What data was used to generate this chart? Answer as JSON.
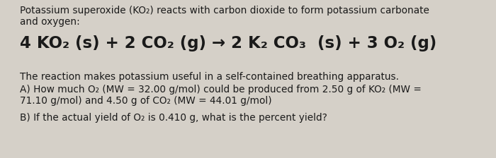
{
  "bg_color": "#d5d0c8",
  "text_color": "#1a1a1a",
  "line1": "Potassium superoxide (KO₂) reacts with carbon dioxide to form potassium carbonate",
  "line2": "and oxygen:",
  "equation": "4 KO₂ (s) + 2 CO₂ (g) → 2 K₂ CO₃  (s) + 3 O₂ (g)",
  "line3": "The reaction makes potassium useful in a self-contained breathing apparatus.",
  "line4": "A) How much O₂ (MW = 32.00 g/mol) could be produced from 2.50 g of KO₂ (MW =",
  "line5": "71.10 g/mol) and 4.50 g of CO₂ (MW = 44.01 g/mol)",
  "line6": "B) If the actual yield of O₂ is 0.410 g, what is the percent yield?",
  "font_size_body": 9.8,
  "font_size_eq": 16.5
}
